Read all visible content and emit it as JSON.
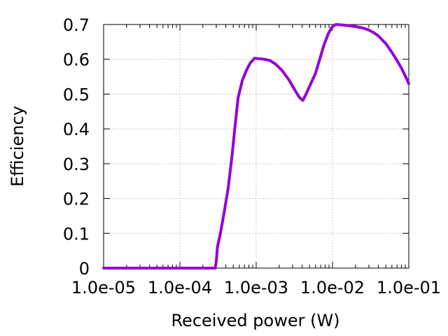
{
  "chart_data": {
    "type": "line",
    "title": "",
    "xlabel": "Received power (W)",
    "ylabel": "Efficiency",
    "x_scale": "log",
    "xlim": [
      1e-05,
      0.1
    ],
    "ylim": [
      0,
      0.7
    ],
    "grid": true,
    "xticks": [
      1e-05,
      0.0001,
      0.001,
      0.01,
      0.1
    ],
    "xtick_labels": [
      "1.0e-05",
      "1.0e-04",
      "1.0e-03",
      "1.0e-02",
      "1.0e-01"
    ],
    "yticks": [
      0,
      0.1,
      0.2,
      0.3,
      0.4,
      0.5,
      0.6,
      0.7
    ],
    "ytick_labels": [
      "0",
      "0.1",
      "0.2",
      "0.3",
      "0.4",
      "0.5",
      "0.6",
      "0.7"
    ],
    "series": [
      {
        "color": "#9400d3",
        "x": [
          1e-05,
          0.0001,
          0.00029,
          0.0003,
          0.00031,
          0.00034,
          0.00038,
          0.00043,
          0.00048,
          0.00053,
          0.00058,
          0.00066,
          0.00075,
          0.00084,
          0.00095,
          0.0012,
          0.0015,
          0.0018,
          0.0022,
          0.0027,
          0.0032,
          0.0037,
          0.0041,
          0.0045,
          0.0052,
          0.006,
          0.0068,
          0.0077,
          0.0088,
          0.0098,
          0.011,
          0.013,
          0.016,
          0.02,
          0.025,
          0.03,
          0.035,
          0.04,
          0.05,
          0.06,
          0.07,
          0.08,
          0.09,
          0.1
        ],
        "y": [
          0,
          0,
          0,
          0.02,
          0.06,
          0.1,
          0.16,
          0.23,
          0.32,
          0.41,
          0.49,
          0.54,
          0.57,
          0.59,
          0.603,
          0.601,
          0.597,
          0.586,
          0.567,
          0.54,
          0.512,
          0.49,
          0.482,
          0.5,
          0.53,
          0.56,
          0.6,
          0.64,
          0.673,
          0.692,
          0.7,
          0.699,
          0.697,
          0.694,
          0.69,
          0.684,
          0.676,
          0.667,
          0.645,
          0.62,
          0.597,
          0.575,
          0.552,
          0.53
        ]
      }
    ]
  }
}
